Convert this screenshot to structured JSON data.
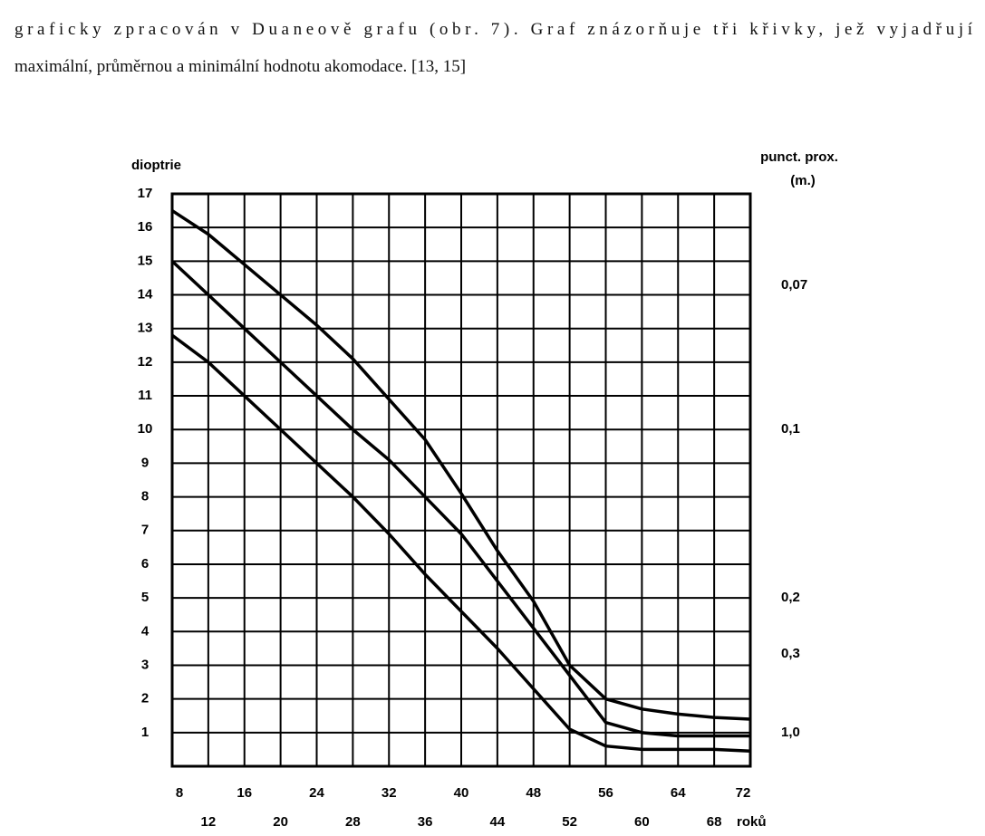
{
  "document": {
    "lines": [
      "graficky zpracován v Duaneově grafu (obr. 7). Graf znázorňuje tři křivky, jež vyjadřují",
      "maximální, průměrnou a minimální hodnotu akomodace. [13, 15]"
    ]
  },
  "chart_data": {
    "type": "line",
    "ylabel": "dioptrie",
    "y2label": [
      "punct. prox.",
      "(m.)"
    ],
    "xlabel": "roků",
    "x": [
      8,
      12,
      16,
      20,
      24,
      28,
      32,
      36,
      40,
      44,
      48,
      52,
      56,
      60,
      64,
      68,
      72
    ],
    "xlim": [
      8,
      72
    ],
    "xticks": [
      8,
      12,
      16,
      20,
      24,
      28,
      32,
      36,
      40,
      44,
      48,
      52,
      56,
      60,
      64,
      68,
      72
    ],
    "ylim": [
      0,
      17
    ],
    "yticks": [
      1,
      2,
      3,
      4,
      5,
      6,
      7,
      8,
      9,
      10,
      11,
      12,
      13,
      14,
      15,
      16,
      17
    ],
    "y2scale": "reciprocal",
    "y2ticks": [
      {
        "value": 0.07,
        "label": "0,07"
      },
      {
        "value": 0.1,
        "label": "0,1"
      },
      {
        "value": 0.2,
        "label": "0,2"
      },
      {
        "value": 0.3,
        "label": "0,3"
      },
      {
        "value": 1.0,
        "label": "1,0"
      }
    ],
    "grid": true,
    "series": [
      {
        "color": "#000000",
        "values": [
          16.5,
          15.8,
          14.9,
          14.0,
          13.1,
          12.1,
          10.9,
          9.7,
          8.1,
          6.4,
          4.9,
          3.0,
          2.0,
          1.7,
          1.55,
          1.45,
          1.4
        ]
      },
      {
        "color": "#000000",
        "values": [
          15.0,
          14.0,
          13.0,
          12.0,
          11.0,
          10.0,
          9.1,
          8.0,
          6.9,
          5.5,
          4.1,
          2.7,
          1.3,
          1.0,
          0.9,
          0.9,
          0.9
        ]
      },
      {
        "color": "#000000",
        "values": [
          12.8,
          12.0,
          11.0,
          10.0,
          9.0,
          8.0,
          6.9,
          5.7,
          4.6,
          3.5,
          2.3,
          1.1,
          0.6,
          0.5,
          0.5,
          0.5,
          0.45
        ]
      }
    ]
  }
}
